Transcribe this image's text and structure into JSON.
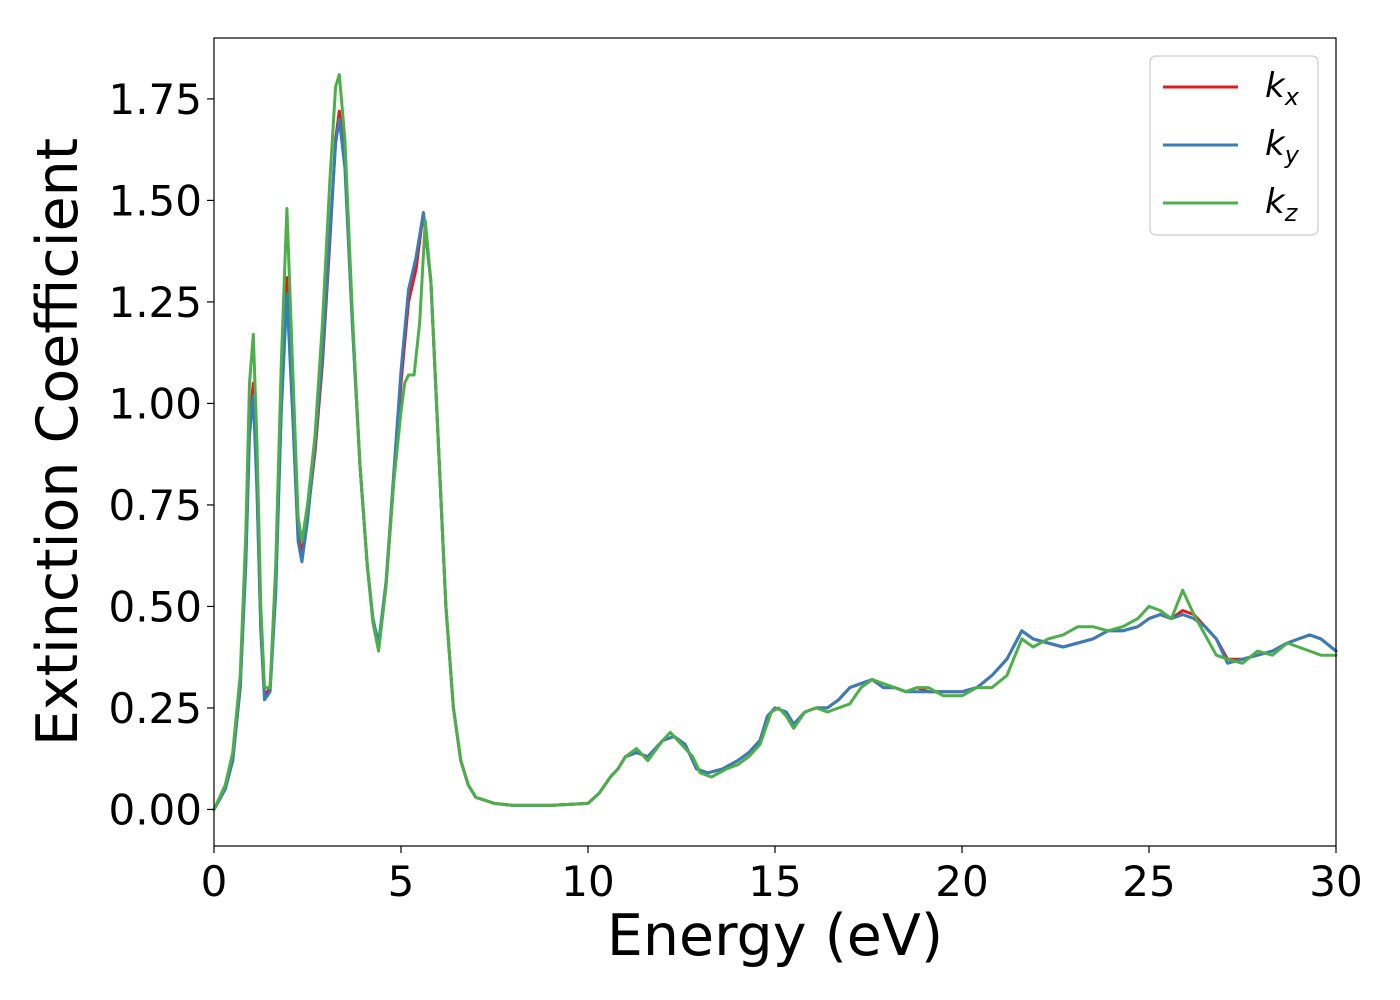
{
  "chart_data": {
    "type": "line",
    "title": "",
    "xlabel": "Energy (eV)",
    "ylabel": "Extinction Coefficient",
    "xlim": [
      0,
      30
    ],
    "ylim": [
      -0.09,
      1.9
    ],
    "xticks": [
      0,
      5,
      10,
      15,
      20,
      25,
      30
    ],
    "yticks": [
      0.0,
      0.25,
      0.5,
      0.75,
      1.0,
      1.25,
      1.5,
      1.75
    ],
    "xtick_labels": [
      "0",
      "5",
      "10",
      "15",
      "20",
      "25",
      "30"
    ],
    "ytick_labels": [
      "0.00",
      "0.25",
      "0.50",
      "0.75",
      "1.00",
      "1.25",
      "1.50",
      "1.75"
    ],
    "grid": false,
    "legend_position": "top-right",
    "series": [
      {
        "name": "k_x",
        "label_main": "k",
        "label_sub": "x",
        "color": "#e41a1c",
        "x": [
          0.0,
          0.3,
          0.5,
          0.7,
          0.85,
          0.95,
          1.05,
          1.15,
          1.25,
          1.35,
          1.5,
          1.65,
          1.8,
          1.95,
          2.1,
          2.25,
          2.35,
          2.5,
          2.7,
          2.9,
          3.1,
          3.25,
          3.35,
          3.5,
          3.7,
          3.9,
          4.1,
          4.25,
          4.4,
          4.6,
          4.8,
          5.0,
          5.2,
          5.4,
          5.6,
          5.8,
          6.0,
          6.2,
          6.4,
          6.6,
          6.8,
          7.0,
          7.5,
          8.0,
          9.0,
          10.0,
          10.3,
          10.6,
          10.8,
          11.0,
          11.3,
          11.6,
          12.0,
          12.3,
          12.6,
          12.9,
          13.2,
          13.6,
          14.0,
          14.3,
          14.6,
          14.8,
          15.0,
          15.3,
          15.5,
          15.8,
          16.1,
          16.4,
          16.7,
          17.0,
          17.3,
          17.6,
          17.9,
          18.2,
          18.5,
          18.8,
          19.1,
          19.5,
          20.0,
          20.4,
          20.8,
          21.2,
          21.6,
          21.9,
          22.3,
          22.7,
          23.1,
          23.5,
          23.9,
          24.3,
          24.7,
          25.0,
          25.3,
          25.6,
          25.9,
          26.2,
          26.5,
          26.8,
          27.1,
          27.5,
          27.9,
          28.3,
          28.7,
          29.0,
          29.3,
          29.6,
          30.0
        ],
        "y": [
          0.0,
          0.05,
          0.12,
          0.3,
          0.62,
          0.95,
          1.05,
          0.8,
          0.45,
          0.28,
          0.3,
          0.55,
          1.0,
          1.31,
          1.0,
          0.68,
          0.63,
          0.72,
          0.88,
          1.1,
          1.4,
          1.65,
          1.72,
          1.6,
          1.2,
          0.85,
          0.6,
          0.47,
          0.4,
          0.55,
          0.8,
          1.05,
          1.25,
          1.33,
          1.47,
          1.3,
          0.9,
          0.5,
          0.25,
          0.12,
          0.06,
          0.03,
          0.015,
          0.01,
          0.01,
          0.015,
          0.04,
          0.08,
          0.1,
          0.13,
          0.14,
          0.13,
          0.17,
          0.18,
          0.16,
          0.1,
          0.09,
          0.1,
          0.12,
          0.14,
          0.17,
          0.23,
          0.25,
          0.24,
          0.21,
          0.24,
          0.25,
          0.25,
          0.27,
          0.3,
          0.31,
          0.32,
          0.3,
          0.3,
          0.29,
          0.3,
          0.29,
          0.29,
          0.29,
          0.3,
          0.33,
          0.37,
          0.44,
          0.42,
          0.41,
          0.4,
          0.41,
          0.42,
          0.44,
          0.44,
          0.45,
          0.47,
          0.48,
          0.47,
          0.49,
          0.48,
          0.45,
          0.42,
          0.37,
          0.37,
          0.38,
          0.39,
          0.41,
          0.42,
          0.43,
          0.42,
          0.39
        ]
      },
      {
        "name": "k_y",
        "label_main": "k",
        "label_sub": "y",
        "color": "#377eb8",
        "x": [
          0.0,
          0.3,
          0.5,
          0.7,
          0.85,
          0.95,
          1.05,
          1.15,
          1.25,
          1.35,
          1.5,
          1.65,
          1.8,
          1.95,
          2.1,
          2.25,
          2.35,
          2.5,
          2.7,
          2.9,
          3.1,
          3.25,
          3.35,
          3.5,
          3.7,
          3.9,
          4.1,
          4.25,
          4.4,
          4.6,
          4.8,
          5.0,
          5.2,
          5.4,
          5.6,
          5.8,
          6.0,
          6.2,
          6.4,
          6.6,
          6.8,
          7.0,
          7.5,
          8.0,
          9.0,
          10.0,
          10.3,
          10.6,
          10.8,
          11.0,
          11.3,
          11.6,
          12.0,
          12.3,
          12.6,
          12.9,
          13.2,
          13.6,
          14.0,
          14.3,
          14.6,
          14.8,
          15.0,
          15.3,
          15.5,
          15.8,
          16.1,
          16.4,
          16.7,
          17.0,
          17.3,
          17.6,
          17.9,
          18.2,
          18.5,
          18.8,
          19.1,
          19.5,
          20.0,
          20.4,
          20.8,
          21.2,
          21.6,
          21.9,
          22.3,
          22.7,
          23.1,
          23.5,
          23.9,
          24.3,
          24.7,
          25.0,
          25.3,
          25.6,
          25.9,
          26.2,
          26.5,
          26.8,
          27.1,
          27.5,
          27.9,
          28.3,
          28.7,
          29.0,
          29.3,
          29.6,
          30.0
        ],
        "y": [
          0.0,
          0.05,
          0.12,
          0.3,
          0.6,
          0.92,
          1.02,
          0.78,
          0.44,
          0.27,
          0.29,
          0.53,
          0.98,
          1.27,
          0.98,
          0.66,
          0.61,
          0.71,
          0.9,
          1.12,
          1.42,
          1.64,
          1.7,
          1.58,
          1.19,
          0.85,
          0.6,
          0.47,
          0.41,
          0.56,
          0.82,
          1.08,
          1.28,
          1.36,
          1.47,
          1.3,
          0.9,
          0.5,
          0.25,
          0.12,
          0.06,
          0.03,
          0.015,
          0.01,
          0.01,
          0.015,
          0.04,
          0.08,
          0.1,
          0.13,
          0.14,
          0.13,
          0.17,
          0.18,
          0.16,
          0.1,
          0.09,
          0.1,
          0.12,
          0.14,
          0.17,
          0.23,
          0.25,
          0.24,
          0.21,
          0.24,
          0.25,
          0.25,
          0.27,
          0.3,
          0.31,
          0.32,
          0.3,
          0.3,
          0.29,
          0.29,
          0.29,
          0.29,
          0.29,
          0.3,
          0.33,
          0.37,
          0.44,
          0.42,
          0.41,
          0.4,
          0.41,
          0.42,
          0.44,
          0.44,
          0.45,
          0.47,
          0.48,
          0.47,
          0.48,
          0.47,
          0.45,
          0.42,
          0.36,
          0.37,
          0.38,
          0.39,
          0.41,
          0.42,
          0.43,
          0.42,
          0.39
        ]
      },
      {
        "name": "k_z",
        "label_main": "k",
        "label_sub": "z",
        "color": "#4daf4a",
        "x": [
          0.0,
          0.3,
          0.5,
          0.7,
          0.85,
          0.95,
          1.05,
          1.15,
          1.25,
          1.35,
          1.5,
          1.65,
          1.8,
          1.95,
          2.1,
          2.25,
          2.35,
          2.5,
          2.7,
          2.9,
          3.1,
          3.25,
          3.35,
          3.5,
          3.7,
          3.9,
          4.1,
          4.25,
          4.4,
          4.6,
          4.8,
          5.0,
          5.1,
          5.2,
          5.35,
          5.5,
          5.65,
          5.8,
          6.0,
          6.2,
          6.4,
          6.6,
          6.8,
          7.0,
          7.5,
          8.0,
          9.0,
          10.0,
          10.3,
          10.6,
          10.8,
          11.0,
          11.3,
          11.6,
          12.0,
          12.2,
          12.5,
          12.8,
          13.0,
          13.3,
          13.7,
          14.0,
          14.3,
          14.6,
          14.9,
          15.1,
          15.3,
          15.5,
          15.8,
          16.1,
          16.4,
          16.7,
          17.0,
          17.3,
          17.6,
          17.9,
          18.2,
          18.5,
          18.8,
          19.1,
          19.5,
          20.0,
          20.4,
          20.8,
          21.2,
          21.6,
          21.9,
          22.3,
          22.7,
          23.1,
          23.5,
          23.9,
          24.3,
          24.7,
          25.0,
          25.3,
          25.6,
          25.9,
          26.2,
          26.5,
          26.8,
          27.1,
          27.5,
          27.9,
          28.3,
          28.7,
          29.0,
          29.3,
          29.6,
          30.0
        ],
        "y": [
          0.0,
          0.06,
          0.14,
          0.33,
          0.68,
          1.05,
          1.17,
          0.9,
          0.5,
          0.3,
          0.3,
          0.6,
          1.1,
          1.48,
          1.1,
          0.72,
          0.66,
          0.75,
          0.92,
          1.2,
          1.55,
          1.78,
          1.81,
          1.65,
          1.22,
          0.85,
          0.6,
          0.46,
          0.39,
          0.55,
          0.8,
          0.98,
          1.05,
          1.07,
          1.07,
          1.2,
          1.45,
          1.3,
          0.9,
          0.5,
          0.25,
          0.12,
          0.06,
          0.03,
          0.015,
          0.01,
          0.01,
          0.015,
          0.04,
          0.08,
          0.1,
          0.13,
          0.15,
          0.12,
          0.17,
          0.19,
          0.16,
          0.13,
          0.09,
          0.08,
          0.1,
          0.11,
          0.13,
          0.16,
          0.24,
          0.25,
          0.23,
          0.2,
          0.24,
          0.25,
          0.24,
          0.25,
          0.26,
          0.3,
          0.32,
          0.31,
          0.3,
          0.29,
          0.3,
          0.3,
          0.28,
          0.28,
          0.3,
          0.3,
          0.33,
          0.42,
          0.4,
          0.42,
          0.43,
          0.45,
          0.45,
          0.44,
          0.45,
          0.47,
          0.5,
          0.49,
          0.47,
          0.54,
          0.48,
          0.43,
          0.38,
          0.37,
          0.36,
          0.39,
          0.38,
          0.41,
          0.4,
          0.39,
          0.38,
          0.38
        ]
      }
    ]
  }
}
